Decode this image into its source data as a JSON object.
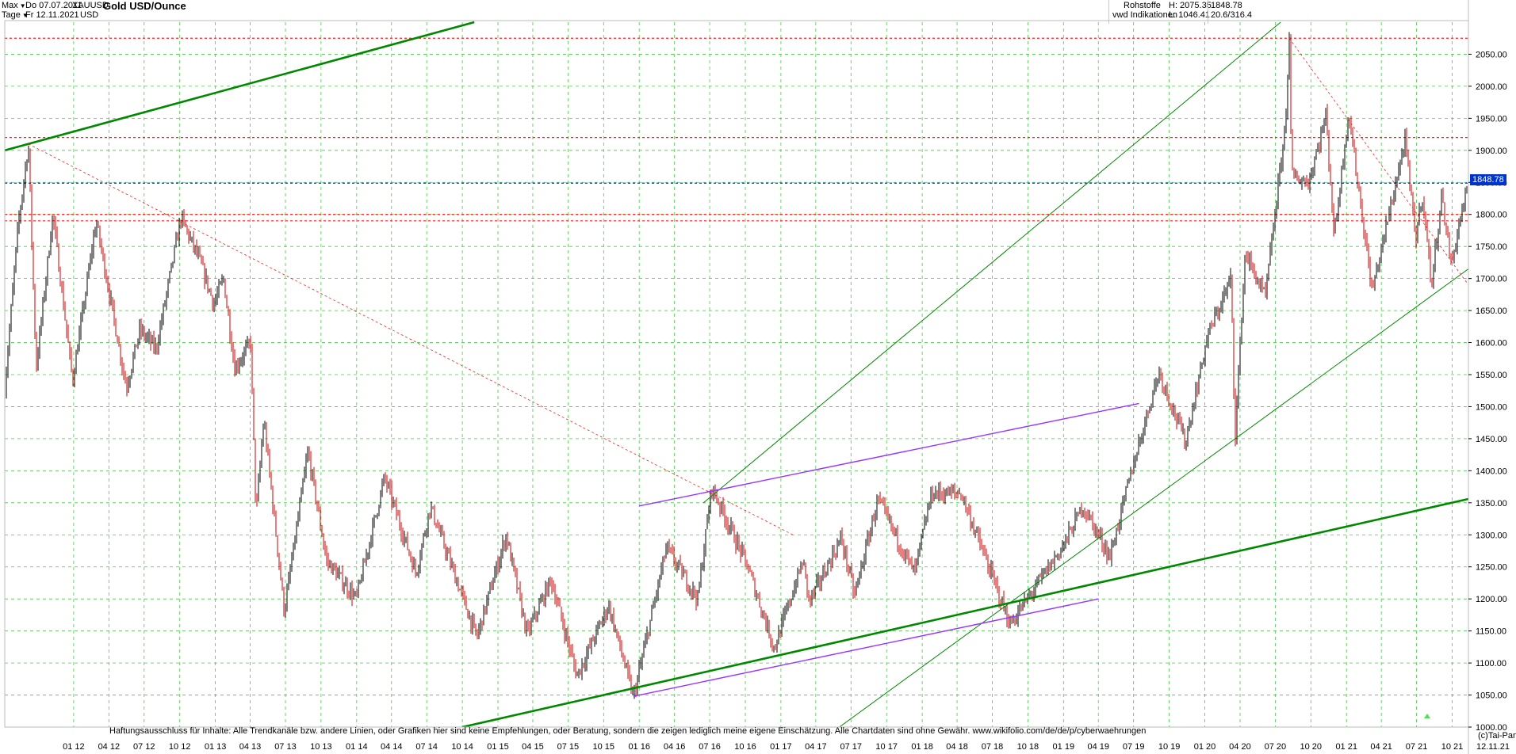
{
  "header": {
    "range_select": "Max",
    "period_select": "Tage",
    "date_from": "Do 07.07.2011",
    "date_to": "Fr 12.11.2021",
    "symbol": "XAUUSD",
    "currency": "USD",
    "title": "Gold USD/Ounce",
    "category": "Rohstoffe",
    "source": "vwd Indikationen",
    "high_label": "H: 2075.35",
    "low_label": "L: 1046.41",
    "last_value": "1848.78",
    "change_value": "20.6/316.4"
  },
  "disclaimer": "Haftungsausschluss für Inhalte: Alle Trendkanäle bzw. andere Linien, oder Grafiken hier sind keine Empfehlungen, oder Beratung, sondern die zeigen lediglich meine eigene Einschätzung. Alle Chartdaten sind ohne Gewähr.  www.wikifolio.com/de/de/p/cyberwaehrungen",
  "copyright": "(c)Tai-Pan",
  "last_date_label": "12.11.21",
  "current_price_label": "1848.78",
  "colors": {
    "up_candle": "#000000",
    "down_candle": "#cc0000",
    "grid": "#44cc44",
    "trend_green": "#008800",
    "trend_light_green": "#55dd55",
    "support_red": "#ee2222",
    "trend_violet": "#9933ff",
    "trend_magenta": "#cc33cc",
    "current_price": "#0033cc"
  },
  "chart_data": {
    "type": "candlestick",
    "title": "Gold USD/Ounce",
    "x_range": [
      "2011-07-07",
      "2021-11-12"
    ],
    "ylim": [
      1000,
      2100
    ],
    "y_ticks": [
      1000,
      1050,
      1100,
      1150,
      1200,
      1250,
      1300,
      1350,
      1400,
      1450,
      1500,
      1550,
      1600,
      1650,
      1700,
      1750,
      1800,
      1850,
      1900,
      1950,
      2000,
      2050
    ],
    "x_ticks": [
      "01 12",
      "04 12",
      "07 12",
      "10 12",
      "01 13",
      "04 13",
      "07 13",
      "10 13",
      "01 14",
      "04 14",
      "07 14",
      "10 14",
      "01 15",
      "04 15",
      "07 15",
      "10 15",
      "01 16",
      "04 16",
      "07 16",
      "10 16",
      "01 17",
      "04 17",
      "07 17",
      "10 17",
      "01 18",
      "04 18",
      "07 18",
      "10 18",
      "01 19",
      "04 19",
      "07 19",
      "10 19",
      "01 20",
      "04 20",
      "07 20",
      "10 20",
      "01 21",
      "04 21",
      "07 21",
      "10 21"
    ],
    "grid": true,
    "price_path": [
      [
        "2011-07-07",
        1530
      ],
      [
        "2011-08-10",
        1780
      ],
      [
        "2011-09-06",
        1910
      ],
      [
        "2011-09-26",
        1560
      ],
      [
        "2011-11-08",
        1800
      ],
      [
        "2011-12-29",
        1540
      ],
      [
        "2012-02-28",
        1790
      ],
      [
        "2012-05-16",
        1530
      ],
      [
        "2012-06-20",
        1620
      ],
      [
        "2012-08-01",
        1590
      ],
      [
        "2012-10-04",
        1795
      ],
      [
        "2012-11-20",
        1730
      ],
      [
        "2012-12-28",
        1660
      ],
      [
        "2013-01-22",
        1700
      ],
      [
        "2013-02-20",
        1560
      ],
      [
        "2013-04-02",
        1600
      ],
      [
        "2013-04-16",
        1330
      ],
      [
        "2013-05-06",
        1480
      ],
      [
        "2013-06-28",
        1180
      ],
      [
        "2013-08-28",
        1430
      ],
      [
        "2013-10-15",
        1260
      ],
      [
        "2013-12-31",
        1200
      ],
      [
        "2014-03-14",
        1390
      ],
      [
        "2014-06-03",
        1240
      ],
      [
        "2014-07-10",
        1345
      ],
      [
        "2014-11-07",
        1140
      ],
      [
        "2015-01-22",
        1300
      ],
      [
        "2015-03-17",
        1145
      ],
      [
        "2015-05-18",
        1230
      ],
      [
        "2015-07-24",
        1080
      ],
      [
        "2015-10-14",
        1190
      ],
      [
        "2015-12-17",
        1046.41
      ],
      [
        "2016-03-11",
        1280
      ],
      [
        "2016-05-31",
        1200
      ],
      [
        "2016-07-06",
        1375
      ],
      [
        "2016-10-07",
        1250
      ],
      [
        "2016-12-15",
        1123
      ],
      [
        "2017-02-27",
        1260
      ],
      [
        "2017-03-15",
        1195
      ],
      [
        "2017-06-06",
        1295
      ],
      [
        "2017-07-10",
        1205
      ],
      [
        "2017-09-08",
        1355
      ],
      [
        "2017-12-12",
        1240
      ],
      [
        "2018-01-25",
        1365
      ],
      [
        "2018-04-11",
        1365
      ],
      [
        "2018-08-16",
        1160
      ],
      [
        "2018-12-31",
        1283
      ],
      [
        "2019-02-20",
        1345
      ],
      [
        "2019-05-01",
        1266
      ],
      [
        "2019-06-30",
        1410
      ],
      [
        "2019-09-04",
        1555
      ],
      [
        "2019-11-12",
        1445
      ],
      [
        "2020-01-08",
        1610
      ],
      [
        "2020-03-09",
        1700
      ],
      [
        "2020-03-19",
        1450
      ],
      [
        "2020-04-14",
        1740
      ],
      [
        "2020-06-05",
        1670
      ],
      [
        "2020-07-27",
        1940
      ],
      [
        "2020-08-06",
        2075.35
      ],
      [
        "2020-08-12",
        1860
      ],
      [
        "2020-09-25",
        1850
      ],
      [
        "2020-11-09",
        1955
      ],
      [
        "2020-11-30",
        1765
      ],
      [
        "2021-01-06",
        1960
      ],
      [
        "2021-03-08",
        1680
      ],
      [
        "2021-06-01",
        1915
      ],
      [
        "2021-06-29",
        1760
      ],
      [
        "2021-07-15",
        1835
      ],
      [
        "2021-08-09",
        1690
      ],
      [
        "2021-09-03",
        1830
      ],
      [
        "2021-09-29",
        1720
      ],
      [
        "2021-10-20",
        1790
      ],
      [
        "2021-11-12",
        1848.78
      ]
    ],
    "horizontal_levels": [
      {
        "value": 2075,
        "style": "red-dashed"
      },
      {
        "value": 1920,
        "style": "red-dashed"
      },
      {
        "value": 1848.78,
        "style": "blue-dashed"
      },
      {
        "value": 1800,
        "style": "red-dashed"
      },
      {
        "value": 1790,
        "style": "red-dashed"
      }
    ],
    "trend_lines": [
      {
        "style": "green-thick",
        "points": [
          [
            "2011-07-07",
            1900
          ],
          [
            "2014-11-01",
            2100
          ]
        ]
      },
      {
        "style": "green-thick",
        "points": [
          [
            "2014-10-01",
            1000
          ],
          [
            "2021-11-12",
            1356
          ]
        ]
      },
      {
        "style": "green",
        "points": [
          [
            "2016-06-15",
            1350
          ],
          [
            "2020-07-15",
            2100
          ]
        ]
      },
      {
        "style": "green",
        "points": [
          [
            "2017-06-01",
            1000
          ],
          [
            "2021-11-12",
            1715
          ]
        ]
      },
      {
        "style": "violet",
        "points": [
          [
            "2015-12-17",
            1048
          ],
          [
            "2019-04-01",
            1200
          ]
        ]
      },
      {
        "style": "violet",
        "points": [
          [
            "2016-01-01",
            1345
          ],
          [
            "2019-07-15",
            1505
          ]
        ]
      },
      {
        "style": "red-dashed-thin",
        "points": [
          [
            "2011-09-06",
            1910
          ],
          [
            "2017-02-01",
            1300
          ]
        ]
      },
      {
        "style": "red-dashed-thin",
        "points": [
          [
            "2020-08-06",
            2075
          ],
          [
            "2021-11-12",
            1690
          ]
        ]
      }
    ]
  }
}
